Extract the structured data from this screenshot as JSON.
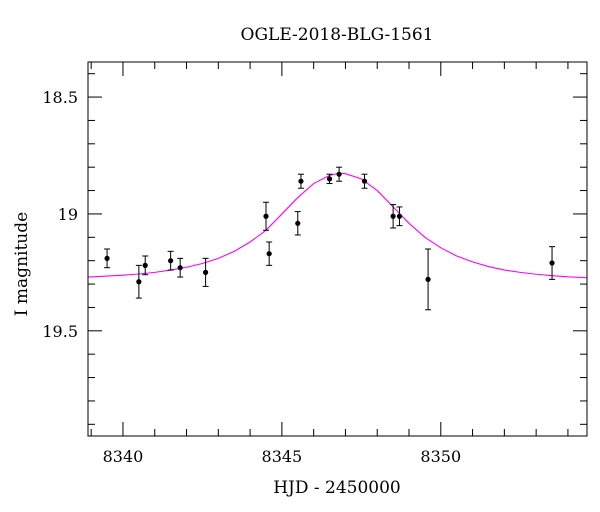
{
  "chart_data": {
    "type": "scatter",
    "title": "OGLE-2018-BLG-1561",
    "xlabel": "HJD - 2450000",
    "ylabel": "I magnitude",
    "xlim": [
      8338.9,
      8354.6
    ],
    "ylim": [
      19.95,
      18.35
    ],
    "y_inverted": true,
    "x_major_ticks": [
      8340,
      8345,
      8350
    ],
    "x_minor_step": 1,
    "y_major_ticks": [
      18.5,
      19,
      19.5
    ],
    "y_minor_step": 0.1,
    "grid": false,
    "series": [
      {
        "kind": "points_with_errorbars",
        "color": "#000000",
        "points": [
          {
            "x": 8339.5,
            "y": 19.19,
            "err": 0.04
          },
          {
            "x": 8340.5,
            "y": 19.29,
            "err": 0.07
          },
          {
            "x": 8340.7,
            "y": 19.22,
            "err": 0.04
          },
          {
            "x": 8341.5,
            "y": 19.2,
            "err": 0.04
          },
          {
            "x": 8341.8,
            "y": 19.23,
            "err": 0.04
          },
          {
            "x": 8342.6,
            "y": 19.25,
            "err": 0.06
          },
          {
            "x": 8344.5,
            "y": 19.01,
            "err": 0.06
          },
          {
            "x": 8344.6,
            "y": 19.17,
            "err": 0.05
          },
          {
            "x": 8345.5,
            "y": 19.04,
            "err": 0.05
          },
          {
            "x": 8345.6,
            "y": 18.86,
            "err": 0.03
          },
          {
            "x": 8346.5,
            "y": 18.85,
            "err": 0.02
          },
          {
            "x": 8346.8,
            "y": 18.83,
            "err": 0.03
          },
          {
            "x": 8347.6,
            "y": 18.86,
            "err": 0.03
          },
          {
            "x": 8348.5,
            "y": 19.01,
            "err": 0.05
          },
          {
            "x": 8348.7,
            "y": 19.01,
            "err": 0.04
          },
          {
            "x": 8349.6,
            "y": 19.28,
            "err": 0.13
          },
          {
            "x": 8353.5,
            "y": 19.21,
            "err": 0.07
          }
        ]
      },
      {
        "kind": "model_curve",
        "color": "#ff00ff",
        "x": [
          8338.9,
          8339.5,
          8340.0,
          8340.5,
          8341.0,
          8341.5,
          8342.0,
          8342.5,
          8343.0,
          8343.5,
          8344.0,
          8344.5,
          8345.0,
          8345.5,
          8346.0,
          8346.5,
          8346.8,
          8347.0,
          8347.5,
          8348.0,
          8348.5,
          8349.0,
          8349.5,
          8350.0,
          8350.5,
          8351.0,
          8351.5,
          8352.0,
          8352.5,
          8353.0,
          8353.5,
          8354.0,
          8354.6
        ],
        "y": [
          19.27,
          19.266,
          19.262,
          19.257,
          19.25,
          19.24,
          19.228,
          19.212,
          19.19,
          19.16,
          19.12,
          19.07,
          19.0,
          18.93,
          18.87,
          18.835,
          18.826,
          18.828,
          18.85,
          18.9,
          18.97,
          19.04,
          19.1,
          19.145,
          19.18,
          19.205,
          19.225,
          19.24,
          19.25,
          19.258,
          19.264,
          19.269,
          19.273
        ]
      }
    ]
  }
}
